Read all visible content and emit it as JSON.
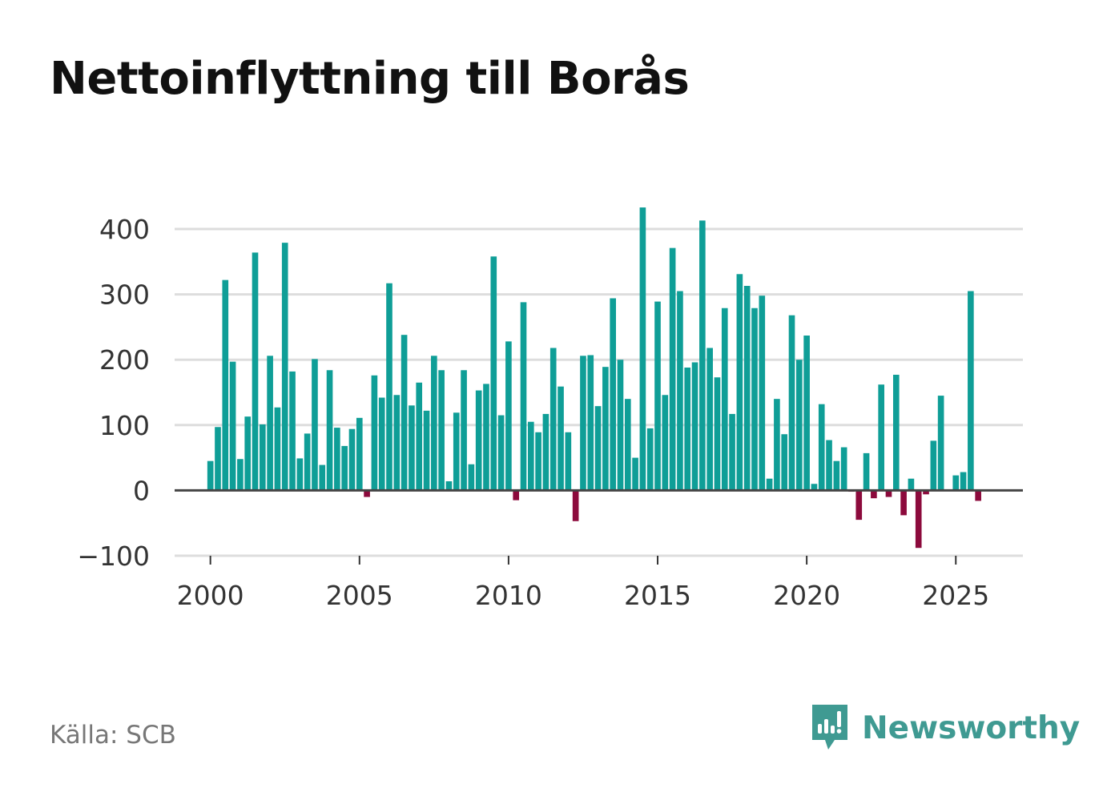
{
  "title": "Nettoinflyttning till Borås",
  "source": "Källa: SCB",
  "brand": {
    "name": "Newsworthy",
    "icon": "newsworthy-logo-icon"
  },
  "colors": {
    "positive": "#0f9e97",
    "negative": "#8c0a3c",
    "grid": "#dddddd",
    "zero_line": "#444444",
    "brand": "#3f9a92"
  },
  "chart_data": {
    "type": "bar",
    "title": "Nettoinflyttning till Borås",
    "xlabel": "",
    "ylabel": "",
    "ylim": [
      -100,
      400
    ],
    "xlim": [
      1998.8,
      2027.25
    ],
    "yticks": [
      -100,
      0,
      100,
      200,
      300,
      400
    ],
    "ytick_labels": [
      "−100",
      "0",
      "100",
      "200",
      "300",
      "400"
    ],
    "xticks": [
      2000,
      2005,
      2010,
      2015,
      2020,
      2025
    ],
    "xtick_labels": [
      "2000",
      "2005",
      "2010",
      "2015",
      "2020",
      "2025"
    ],
    "frequency": "quarterly",
    "start_period": "2000 Q1",
    "end_period": "2025 Q4",
    "values": [
      45,
      97,
      322,
      197,
      48,
      113,
      364,
      101,
      206,
      127,
      379,
      182,
      49,
      87,
      201,
      39,
      184,
      96,
      68,
      94,
      111,
      -10,
      176,
      142,
      317,
      146,
      238,
      130,
      165,
      122,
      206,
      184,
      14,
      119,
      184,
      40,
      153,
      163,
      358,
      115,
      228,
      -15,
      288,
      105,
      89,
      117,
      218,
      159,
      89,
      -47,
      206,
      207,
      129,
      189,
      294,
      200,
      140,
      50,
      433,
      95,
      289,
      146,
      371,
      305,
      188,
      196,
      413,
      218,
      173,
      279,
      117,
      331,
      313,
      279,
      298,
      18,
      140,
      86,
      268,
      200,
      237,
      10,
      132,
      77,
      45,
      66,
      -2,
      -45,
      57,
      -12,
      162,
      -10,
      177,
      -38,
      18,
      -88,
      -6,
      76,
      145,
      0,
      23,
      28,
      305,
      -16
    ]
  }
}
